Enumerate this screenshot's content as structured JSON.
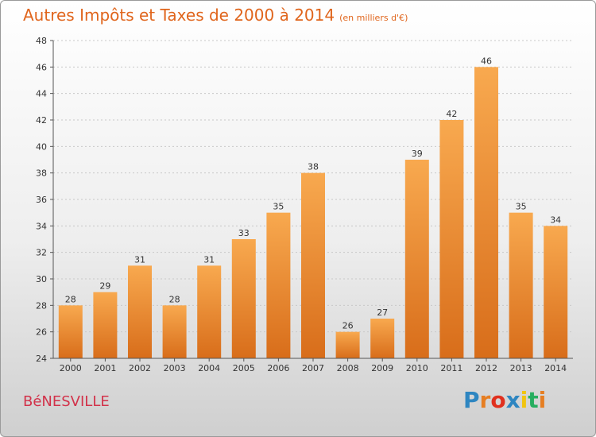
{
  "header": {
    "title": "Autres Impôts et Taxes de 2000 à 2014",
    "unit_note": "(en milliers d'€)"
  },
  "footer": {
    "commune": "BéNESVILLE",
    "logo_letters": [
      "P",
      "r",
      "o",
      "x",
      "i",
      "t",
      "i"
    ],
    "logo_colors": [
      "#2e86c1",
      "#e67e22",
      "#e0301e",
      "#2e86c1",
      "#f1c40f",
      "#27ae60",
      "#e67e22"
    ]
  },
  "colors": {
    "bar_light": "#f8a94f",
    "bar_dark": "#d86d1a",
    "axis": "#555555",
    "grid": "#c8c8c8",
    "title": "#e0651c"
  },
  "chart_data": {
    "type": "bar",
    "categories": [
      "2000",
      "2001",
      "2002",
      "2003",
      "2004",
      "2005",
      "2006",
      "2007",
      "2008",
      "2009",
      "2010",
      "2011",
      "2012",
      "2013",
      "2014"
    ],
    "values": [
      28,
      29,
      31,
      28,
      31,
      33,
      35,
      38,
      26,
      27,
      39,
      42,
      46,
      35,
      34
    ],
    "ylim": [
      24,
      48
    ],
    "yticks": [
      24,
      26,
      28,
      30,
      32,
      34,
      36,
      38,
      40,
      42,
      44,
      46,
      48
    ],
    "grid": true
  }
}
